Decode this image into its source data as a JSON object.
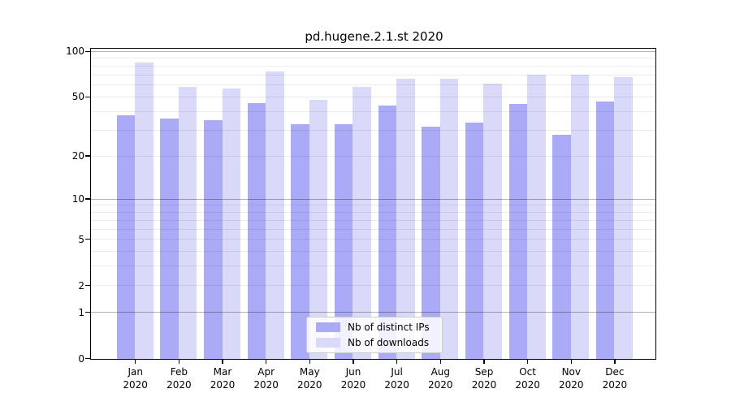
{
  "chart_data": {
    "type": "bar",
    "title": "pd.hugene.2.1.st 2020",
    "categories": [
      "Jan",
      "Feb",
      "Mar",
      "Apr",
      "May",
      "Jun",
      "Jul",
      "Aug",
      "Sep",
      "Oct",
      "Nov",
      "Dec"
    ],
    "x_year": "2020",
    "series": [
      {
        "name": "Nb of distinct IPs",
        "color": "#aaaaf7",
        "values": [
          38,
          36,
          35,
          46,
          33,
          33,
          44,
          32,
          34,
          45,
          28,
          47
        ]
      },
      {
        "name": "Nb of downloads",
        "color": "#d9d9f9",
        "values": [
          85,
          59,
          57,
          74,
          48,
          59,
          66,
          66,
          62,
          71,
          71,
          68
        ]
      }
    ],
    "yscale": "log10(value+1)",
    "ylim": [
      0,
      100
    ],
    "y_ticks": [
      100,
      50,
      20,
      10,
      5,
      2,
      1,
      0
    ],
    "grid_dark": [
      1,
      10,
      100
    ],
    "grid_light": [
      2,
      3,
      4,
      5,
      6,
      7,
      8,
      9,
      20,
      30,
      40,
      50,
      60,
      70,
      80,
      90
    ],
    "legend_position": "inside-bottom-center",
    "colors": {
      "frame": "#000000",
      "grid_dark": "#b3b3b3",
      "grid_light": "#ececec",
      "background": "#ffffff"
    }
  }
}
